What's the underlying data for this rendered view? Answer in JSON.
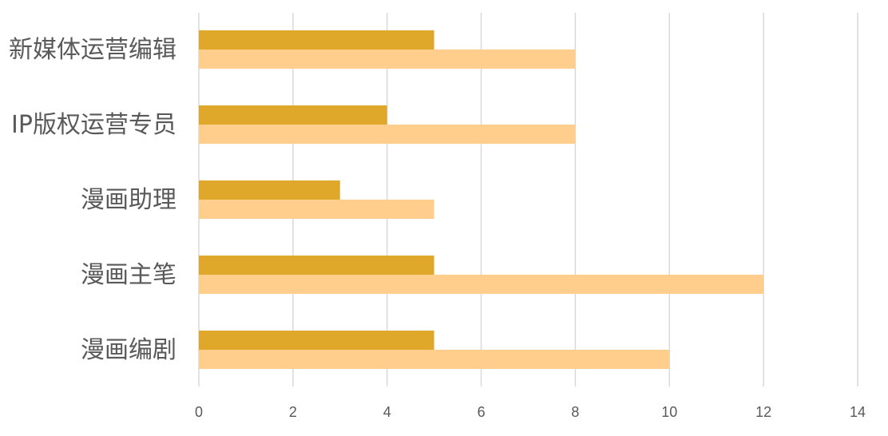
{
  "chart_data": {
    "type": "bar",
    "orientation": "horizontal",
    "categories": [
      "新媒体运营编辑",
      "IP版权运营专员",
      "漫画助理",
      "漫画主笔",
      "漫画编剧"
    ],
    "series": [
      {
        "values": [
          5,
          4,
          3,
          5,
          5
        ],
        "color": "#E0A82A"
      },
      {
        "values": [
          8,
          8,
          5,
          12,
          10
        ],
        "color": "#FFCE8C"
      }
    ],
    "xlim": [
      0,
      14
    ],
    "xticks": [
      "0",
      "2",
      "4",
      "6",
      "8",
      "10",
      "12",
      "14"
    ],
    "grid": true,
    "gridColor": "#D9D9D9",
    "legend": "none"
  }
}
